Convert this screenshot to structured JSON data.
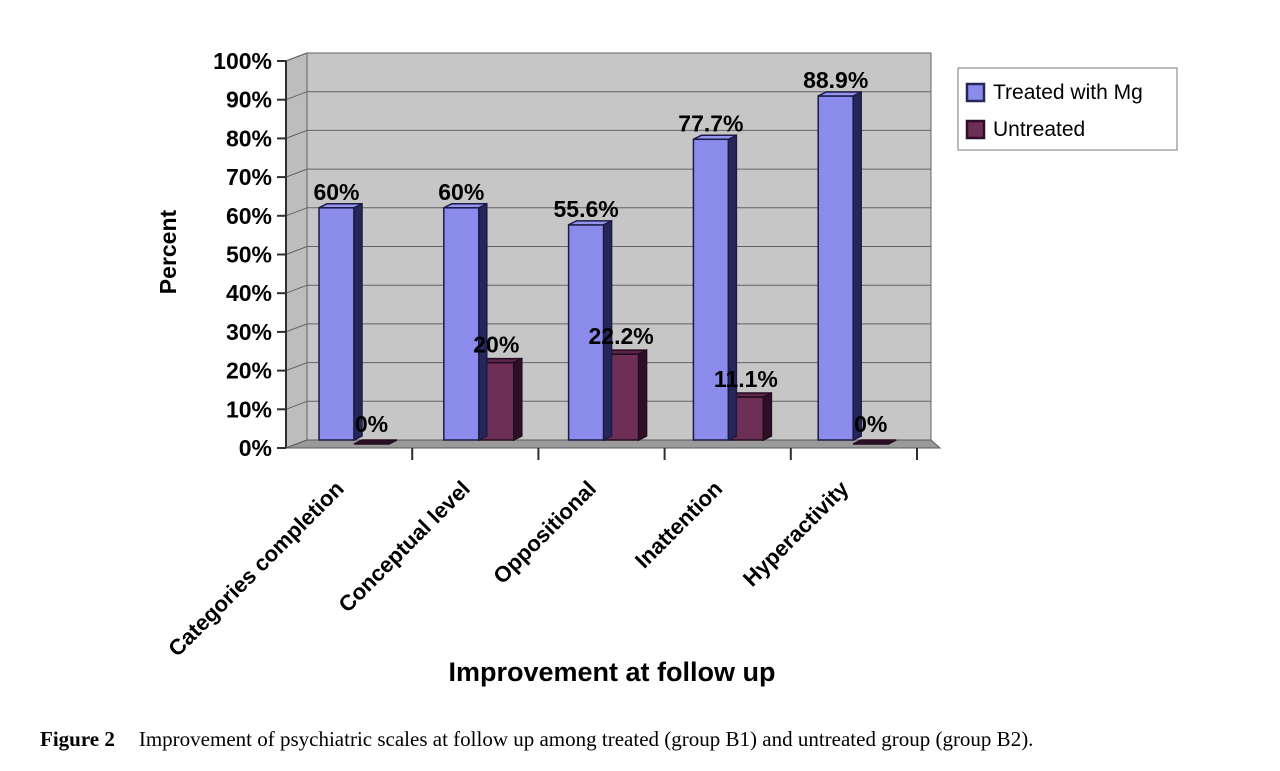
{
  "figure": {
    "caption_label": "Figure 2",
    "caption_text": "Improvement of psychiatric scales at follow up among treated (group B1) and untreated group (group B2)."
  },
  "chart_data": {
    "type": "bar",
    "style": "3d-clustered",
    "title": "",
    "xlabel": "Improvement at follow up",
    "ylabel": "Percent",
    "categories": [
      "Categories completion",
      "Conceptual level",
      "Oppositional",
      "Inattention",
      "Hyperactivity"
    ],
    "series": [
      {
        "name": "Treated with Mg",
        "values": [
          60,
          60,
          55.6,
          77.7,
          88.9
        ],
        "labels": [
          "60%",
          "60%",
          "55.6%",
          "77.7%",
          "88.9%"
        ],
        "color": "#8b8bec",
        "color_top": "#9595f0",
        "color_side": "#26265a",
        "stroke": "#1b1b45"
      },
      {
        "name": "Untreated",
        "values": [
          0,
          20,
          22.2,
          11.1,
          0
        ],
        "labels": [
          "0%",
          "20%",
          "22.2%",
          "11.1%",
          "0%"
        ],
        "color": "#6e2f57",
        "color_top": "#5d2549",
        "color_side": "#2f0f28",
        "stroke": "#230c1e"
      }
    ],
    "ylim": [
      0,
      100
    ],
    "ytick_step": 10,
    "ytick_labels": [
      "0%",
      "10%",
      "20%",
      "30%",
      "40%",
      "50%",
      "60%",
      "70%",
      "80%",
      "90%",
      "100%"
    ],
    "grid": true,
    "legend_position": "top-right",
    "colors": {
      "plot_bg": "#c6c6c6",
      "wall_bg": "#bdbdbd",
      "floor_bg": "#9a9a9a",
      "gridline": "#636363",
      "axis": "#2e2e2e",
      "legend_bg": "#ffffff",
      "legend_border": "#7a7a7a"
    }
  }
}
